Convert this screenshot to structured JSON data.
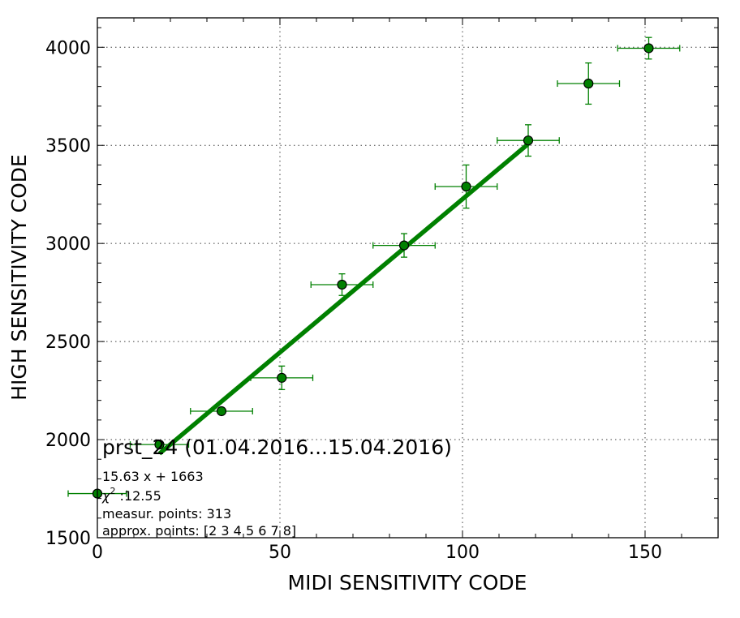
{
  "chart_data": {
    "type": "scatter",
    "xlabel": "MIDI SENSITIVITY CODE",
    "ylabel": "HIGH SENSITIVITY CODE",
    "xlim": [
      0,
      170
    ],
    "ylim": [
      1500,
      4150
    ],
    "x_ticks": [
      0,
      50,
      100,
      150
    ],
    "y_ticks": [
      1500,
      2000,
      2500,
      3000,
      3500,
      4000
    ],
    "grid": true,
    "colors": {
      "marker": "#008000",
      "errorbar": "#008000",
      "fit": "#008000",
      "marker_edge": "#000000"
    },
    "series": [
      {
        "points": [
          {
            "x": 0,
            "y": 1725,
            "xerr": 8,
            "yerr": 0
          },
          {
            "x": 17,
            "y": 1975,
            "xerr": 8,
            "yerr": 12
          },
          {
            "x": 34,
            "y": 2145,
            "xerr": 8.5,
            "yerr": 15
          },
          {
            "x": 50.5,
            "y": 2315,
            "xerr": 8.5,
            "yerr": 60
          },
          {
            "x": 67,
            "y": 2790,
            "xerr": 8.5,
            "yerr": 55
          },
          {
            "x": 84,
            "y": 2990,
            "xerr": 8.5,
            "yerr": 60
          },
          {
            "x": 101,
            "y": 3290,
            "xerr": 8.5,
            "yerr": 110
          },
          {
            "x": 118,
            "y": 3525,
            "xerr": 8.5,
            "yerr": 80
          },
          {
            "x": 134.5,
            "y": 3815,
            "xerr": 8.5,
            "yerr": 105
          },
          {
            "x": 151,
            "y": 3995,
            "xerr": 8.5,
            "yerr": 55
          }
        ]
      }
    ],
    "fit": {
      "slope": 15.63,
      "intercept": 1663,
      "x_range": [
        17,
        118
      ]
    },
    "annotations": {
      "title": "prst_24 (01.04.2016...15.04.2016)",
      "equation": "15.63 x + 1663",
      "chi_label": "χ",
      "chi_sup": "2",
      "chi_value": " :12.55",
      "measur": "measur. points: 313",
      "approx": "approx. points: [2 3 4 5 6 7 8]"
    }
  }
}
